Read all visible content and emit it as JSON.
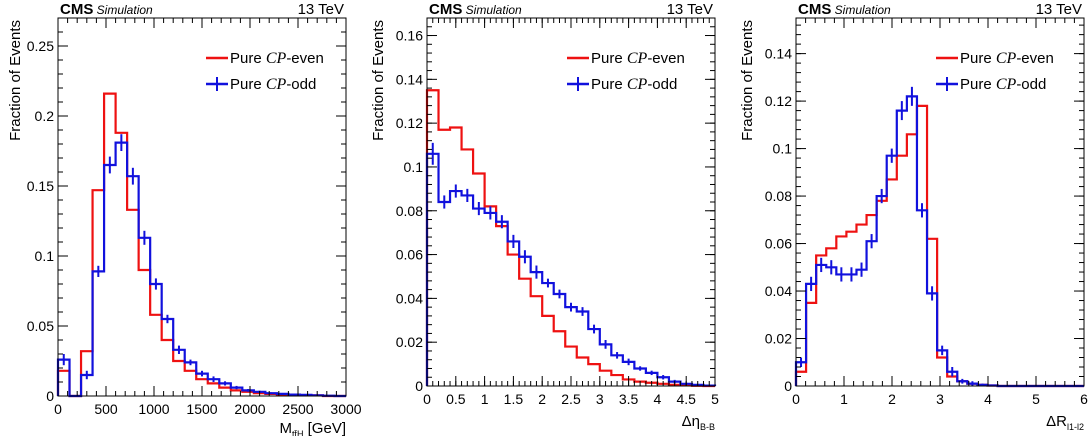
{
  "figure": {
    "colors": {
      "even": "#ee1111",
      "odd": "#1111dd",
      "axis": "#000000"
    },
    "experiment_label": "CMS",
    "experiment_sublabel": "Simulation",
    "energy_label": "13 TeV"
  },
  "chart_data": [
    {
      "type": "histogram",
      "experiment": "CMS",
      "sublabel": "Simulation",
      "energy": "13 TeV",
      "xlabel_main": "M",
      "xlabel_sub": "tt̄H",
      "xlabel_unit": "[GeV]",
      "ylabel": "Fraction of Events",
      "xlim": [
        0,
        3000
      ],
      "ylim": [
        0,
        0.27
      ],
      "xticks": [
        0,
        500,
        1000,
        1500,
        2000,
        2500,
        3000
      ],
      "xtick_labels": [
        "0",
        "500",
        "1000",
        "1500",
        "2000",
        "2500",
        "3000"
      ],
      "yticks": [
        0,
        0.05,
        0.1,
        0.15,
        0.2,
        0.25
      ],
      "ytick_labels": [
        "0",
        "0.05",
        "0.1",
        "0.15",
        "0.2",
        "0.25"
      ],
      "legend_position": "top-right",
      "series": [
        {
          "name_prefix": "Pure ",
          "name_cp": "CP",
          "name_suffix": "-even",
          "key": "even",
          "edges": [
            0,
            120,
            240,
            360,
            480,
            600,
            720,
            840,
            960,
            1080,
            1200,
            1320,
            1440,
            1560,
            1680,
            1800,
            1920,
            2040,
            2160,
            2280,
            2400,
            2520,
            2640,
            2760,
            2880,
            3000
          ],
          "values": [
            0.018,
            0.0,
            0.032,
            0.147,
            0.216,
            0.188,
            0.133,
            0.09,
            0.058,
            0.04,
            0.025,
            0.018,
            0.012,
            0.009,
            0.006,
            0.004,
            0.003,
            0.002,
            0.0015,
            0.001,
            0.001,
            0.0005,
            0.0005,
            0.0,
            0.0
          ],
          "errors": []
        },
        {
          "name_prefix": "Pure ",
          "name_cp": "CP",
          "name_suffix": "-odd",
          "key": "odd",
          "edges": [
            0,
            120,
            240,
            360,
            480,
            600,
            720,
            840,
            960,
            1080,
            1200,
            1320,
            1440,
            1560,
            1680,
            1800,
            1920,
            2040,
            2160,
            2280,
            2400,
            2520,
            2640,
            2760,
            2880,
            3000
          ],
          "values": [
            0.026,
            0.0,
            0.015,
            0.089,
            0.165,
            0.181,
            0.157,
            0.113,
            0.08,
            0.055,
            0.033,
            0.024,
            0.016,
            0.012,
            0.009,
            0.006,
            0.004,
            0.003,
            0.002,
            0.0015,
            0.001,
            0.0008,
            0.0005,
            0.0002,
            0.0
          ],
          "errors": [
            0.004,
            0.0,
            0.003,
            0.004,
            0.006,
            0.006,
            0.006,
            0.005,
            0.004,
            0.003,
            0.003,
            0.002,
            0.002,
            0.002,
            0.0015,
            0.0012,
            0.001,
            0.0008,
            0.0006,
            0.0005,
            0.0004,
            0.0003,
            0.0003,
            0.0002,
            0.0
          ]
        }
      ]
    },
    {
      "type": "histogram",
      "experiment": "CMS",
      "sublabel": "Simulation",
      "energy": "13 TeV",
      "xlabel_main": "Δη",
      "xlabel_sub": "B-B",
      "xlabel_unit": "",
      "ylabel": "Fraction of Events",
      "xlim": [
        0,
        5
      ],
      "ylim": [
        0,
        0.168
      ],
      "xticks": [
        0,
        0.5,
        1,
        1.5,
        2,
        2.5,
        3,
        3.5,
        4,
        4.5,
        5
      ],
      "xtick_labels": [
        "0",
        "0.5",
        "1",
        "1.5",
        "2",
        "2.5",
        "3",
        "3.5",
        "4",
        "4.5",
        "5"
      ],
      "yticks": [
        0,
        0.02,
        0.04,
        0.06,
        0.08,
        0.1,
        0.12,
        0.14,
        0.16
      ],
      "ytick_labels": [
        "0",
        "0.02",
        "0.04",
        "0.06",
        "0.08",
        "0.1",
        "0.12",
        "0.14",
        "0.16"
      ],
      "legend_position": "top-right",
      "series": [
        {
          "name_prefix": "Pure ",
          "name_cp": "CP",
          "name_suffix": "-even",
          "key": "even",
          "edges": [
            0,
            0.2,
            0.4,
            0.6,
            0.8,
            1.0,
            1.2,
            1.4,
            1.6,
            1.8,
            2.0,
            2.2,
            2.4,
            2.6,
            2.8,
            3.0,
            3.2,
            3.4,
            3.6,
            3.8,
            4.0,
            4.2,
            4.4,
            4.6,
            4.8,
            5.0
          ],
          "values": [
            0.135,
            0.117,
            0.118,
            0.108,
            0.097,
            0.082,
            0.073,
            0.06,
            0.049,
            0.041,
            0.032,
            0.025,
            0.018,
            0.013,
            0.01,
            0.007,
            0.005,
            0.003,
            0.002,
            0.0015,
            0.001,
            0.0005,
            0.0003,
            0.0001,
            0.0
          ],
          "errors": []
        },
        {
          "name_prefix": "Pure ",
          "name_cp": "CP",
          "name_suffix": "-odd",
          "key": "odd",
          "edges": [
            0,
            0.2,
            0.4,
            0.6,
            0.8,
            1.0,
            1.2,
            1.4,
            1.6,
            1.8,
            2.0,
            2.2,
            2.4,
            2.6,
            2.8,
            3.0,
            3.2,
            3.4,
            3.6,
            3.8,
            4.0,
            4.2,
            4.4,
            4.6,
            4.8,
            5.0
          ],
          "values": [
            0.106,
            0.084,
            0.089,
            0.087,
            0.081,
            0.079,
            0.075,
            0.066,
            0.059,
            0.052,
            0.047,
            0.042,
            0.036,
            0.034,
            0.026,
            0.019,
            0.014,
            0.011,
            0.008,
            0.006,
            0.004,
            0.002,
            0.001,
            0.0005,
            0.0002
          ],
          "errors": [
            0.005,
            0.003,
            0.003,
            0.003,
            0.003,
            0.003,
            0.003,
            0.003,
            0.003,
            0.003,
            0.002,
            0.002,
            0.002,
            0.002,
            0.002,
            0.002,
            0.0015,
            0.0015,
            0.001,
            0.001,
            0.001,
            0.0008,
            0.0005,
            0.0004,
            0.0002
          ]
        }
      ]
    },
    {
      "type": "histogram",
      "experiment": "CMS",
      "sublabel": "Simulation",
      "energy": "13 TeV",
      "xlabel_main": "ΔR",
      "xlabel_sub": "l1-l2",
      "xlabel_unit": "",
      "ylabel": "Fraction of Events",
      "xlim": [
        0,
        6
      ],
      "ylim": [
        0,
        0.155
      ],
      "xticks": [
        0,
        1,
        2,
        3,
        4,
        5,
        6
      ],
      "xtick_labels": [
        "0",
        "1",
        "2",
        "3",
        "4",
        "5",
        "6"
      ],
      "yticks": [
        0,
        0.02,
        0.04,
        0.06,
        0.08,
        0.1,
        0.12,
        0.14
      ],
      "ytick_labels": [
        "0",
        "0.02",
        "0.04",
        "0.06",
        "0.08",
        "0.1",
        "0.12",
        "0.14"
      ],
      "legend_position": "top-right",
      "series": [
        {
          "name_prefix": "Pure ",
          "name_cp": "CP",
          "name_suffix": "-even",
          "key": "even",
          "edges": [
            0,
            0.21,
            0.42,
            0.63,
            0.84,
            1.05,
            1.26,
            1.47,
            1.68,
            1.89,
            2.1,
            2.31,
            2.52,
            2.73,
            2.94,
            3.15,
            3.36,
            3.57,
            3.78,
            3.99,
            4.2,
            4.41,
            4.62,
            4.83,
            5.04,
            6.0
          ],
          "values": [
            0.006,
            0.035,
            0.055,
            0.058,
            0.063,
            0.065,
            0.068,
            0.072,
            0.078,
            0.087,
            0.097,
            0.106,
            0.118,
            0.062,
            0.012,
            0.004,
            0.002,
            0.001,
            0.0005,
            0.0002,
            0.0,
            0.0,
            0.0,
            0.0,
            0.0
          ],
          "errors": []
        },
        {
          "name_prefix": "Pure ",
          "name_cp": "CP",
          "name_suffix": "-odd",
          "key": "odd",
          "edges": [
            0,
            0.21,
            0.42,
            0.63,
            0.84,
            1.05,
            1.26,
            1.47,
            1.68,
            1.89,
            2.1,
            2.31,
            2.52,
            2.73,
            2.94,
            3.15,
            3.36,
            3.57,
            3.78,
            3.99,
            4.2,
            4.41,
            4.62,
            4.83,
            5.04,
            6.0
          ],
          "values": [
            0.01,
            0.043,
            0.051,
            0.05,
            0.047,
            0.047,
            0.049,
            0.061,
            0.08,
            0.097,
            0.116,
            0.122,
            0.074,
            0.039,
            0.015,
            0.006,
            0.002,
            0.001,
            0.0005,
            0.0002,
            0.0,
            0.0,
            0.0,
            0.0,
            0.0
          ],
          "errors": [
            0.002,
            0.003,
            0.003,
            0.003,
            0.003,
            0.003,
            0.003,
            0.003,
            0.003,
            0.003,
            0.004,
            0.004,
            0.003,
            0.003,
            0.002,
            0.002,
            0.001,
            0.001,
            0.0005,
            0.0003,
            0.0,
            0.0,
            0.0,
            0.0,
            0.0
          ]
        }
      ]
    }
  ]
}
